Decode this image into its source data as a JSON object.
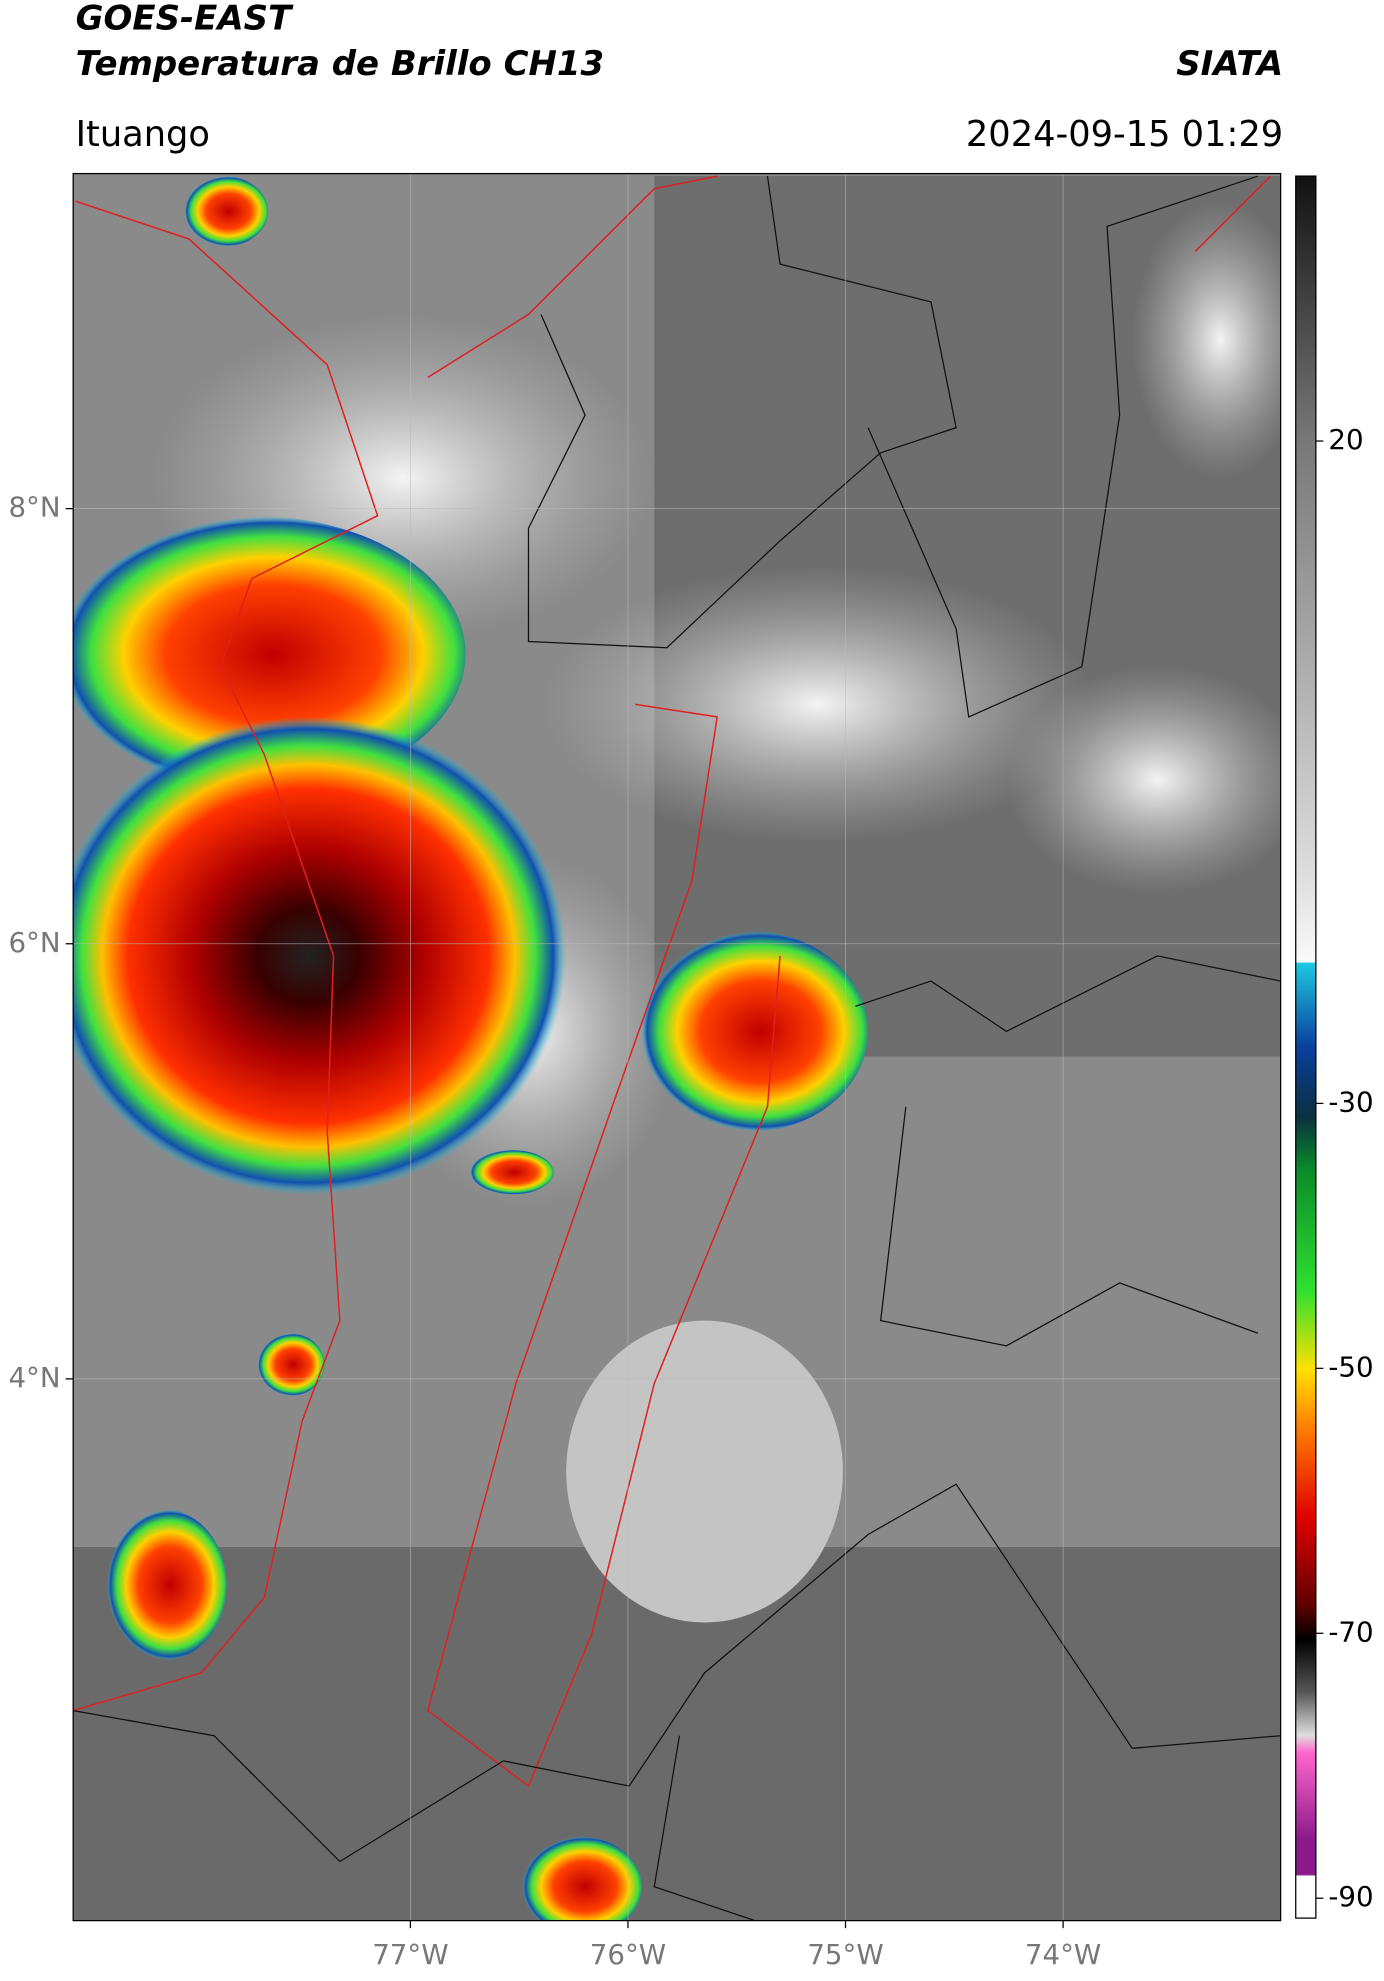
{
  "header": {
    "title": "GOES-EAST",
    "subtitle": "Temperatura de Brillo CH13",
    "source": "SIATA",
    "location": "Ituango",
    "datetime": "2024-09-15 01:29"
  },
  "map": {
    "lonlim": [
      -78.55,
      -73.0
    ],
    "latlim": [
      1.51,
      9.54
    ],
    "lonticks": [
      {
        "value": -77,
        "label": "77°W"
      },
      {
        "value": -76,
        "label": "76°W"
      },
      {
        "value": -75,
        "label": "75°W"
      },
      {
        "value": -74,
        "label": "74°W"
      }
    ],
    "latticks": [
      {
        "value": 8,
        "label": "8°N"
      },
      {
        "value": 6,
        "label": "6°N"
      },
      {
        "value": 4,
        "label": "4°N"
      }
    ],
    "grid": true
  },
  "colorbar": {
    "lim": [
      -91.5,
      40
    ],
    "ticks": [
      20,
      -30,
      -50,
      -70,
      -90
    ]
  }
}
